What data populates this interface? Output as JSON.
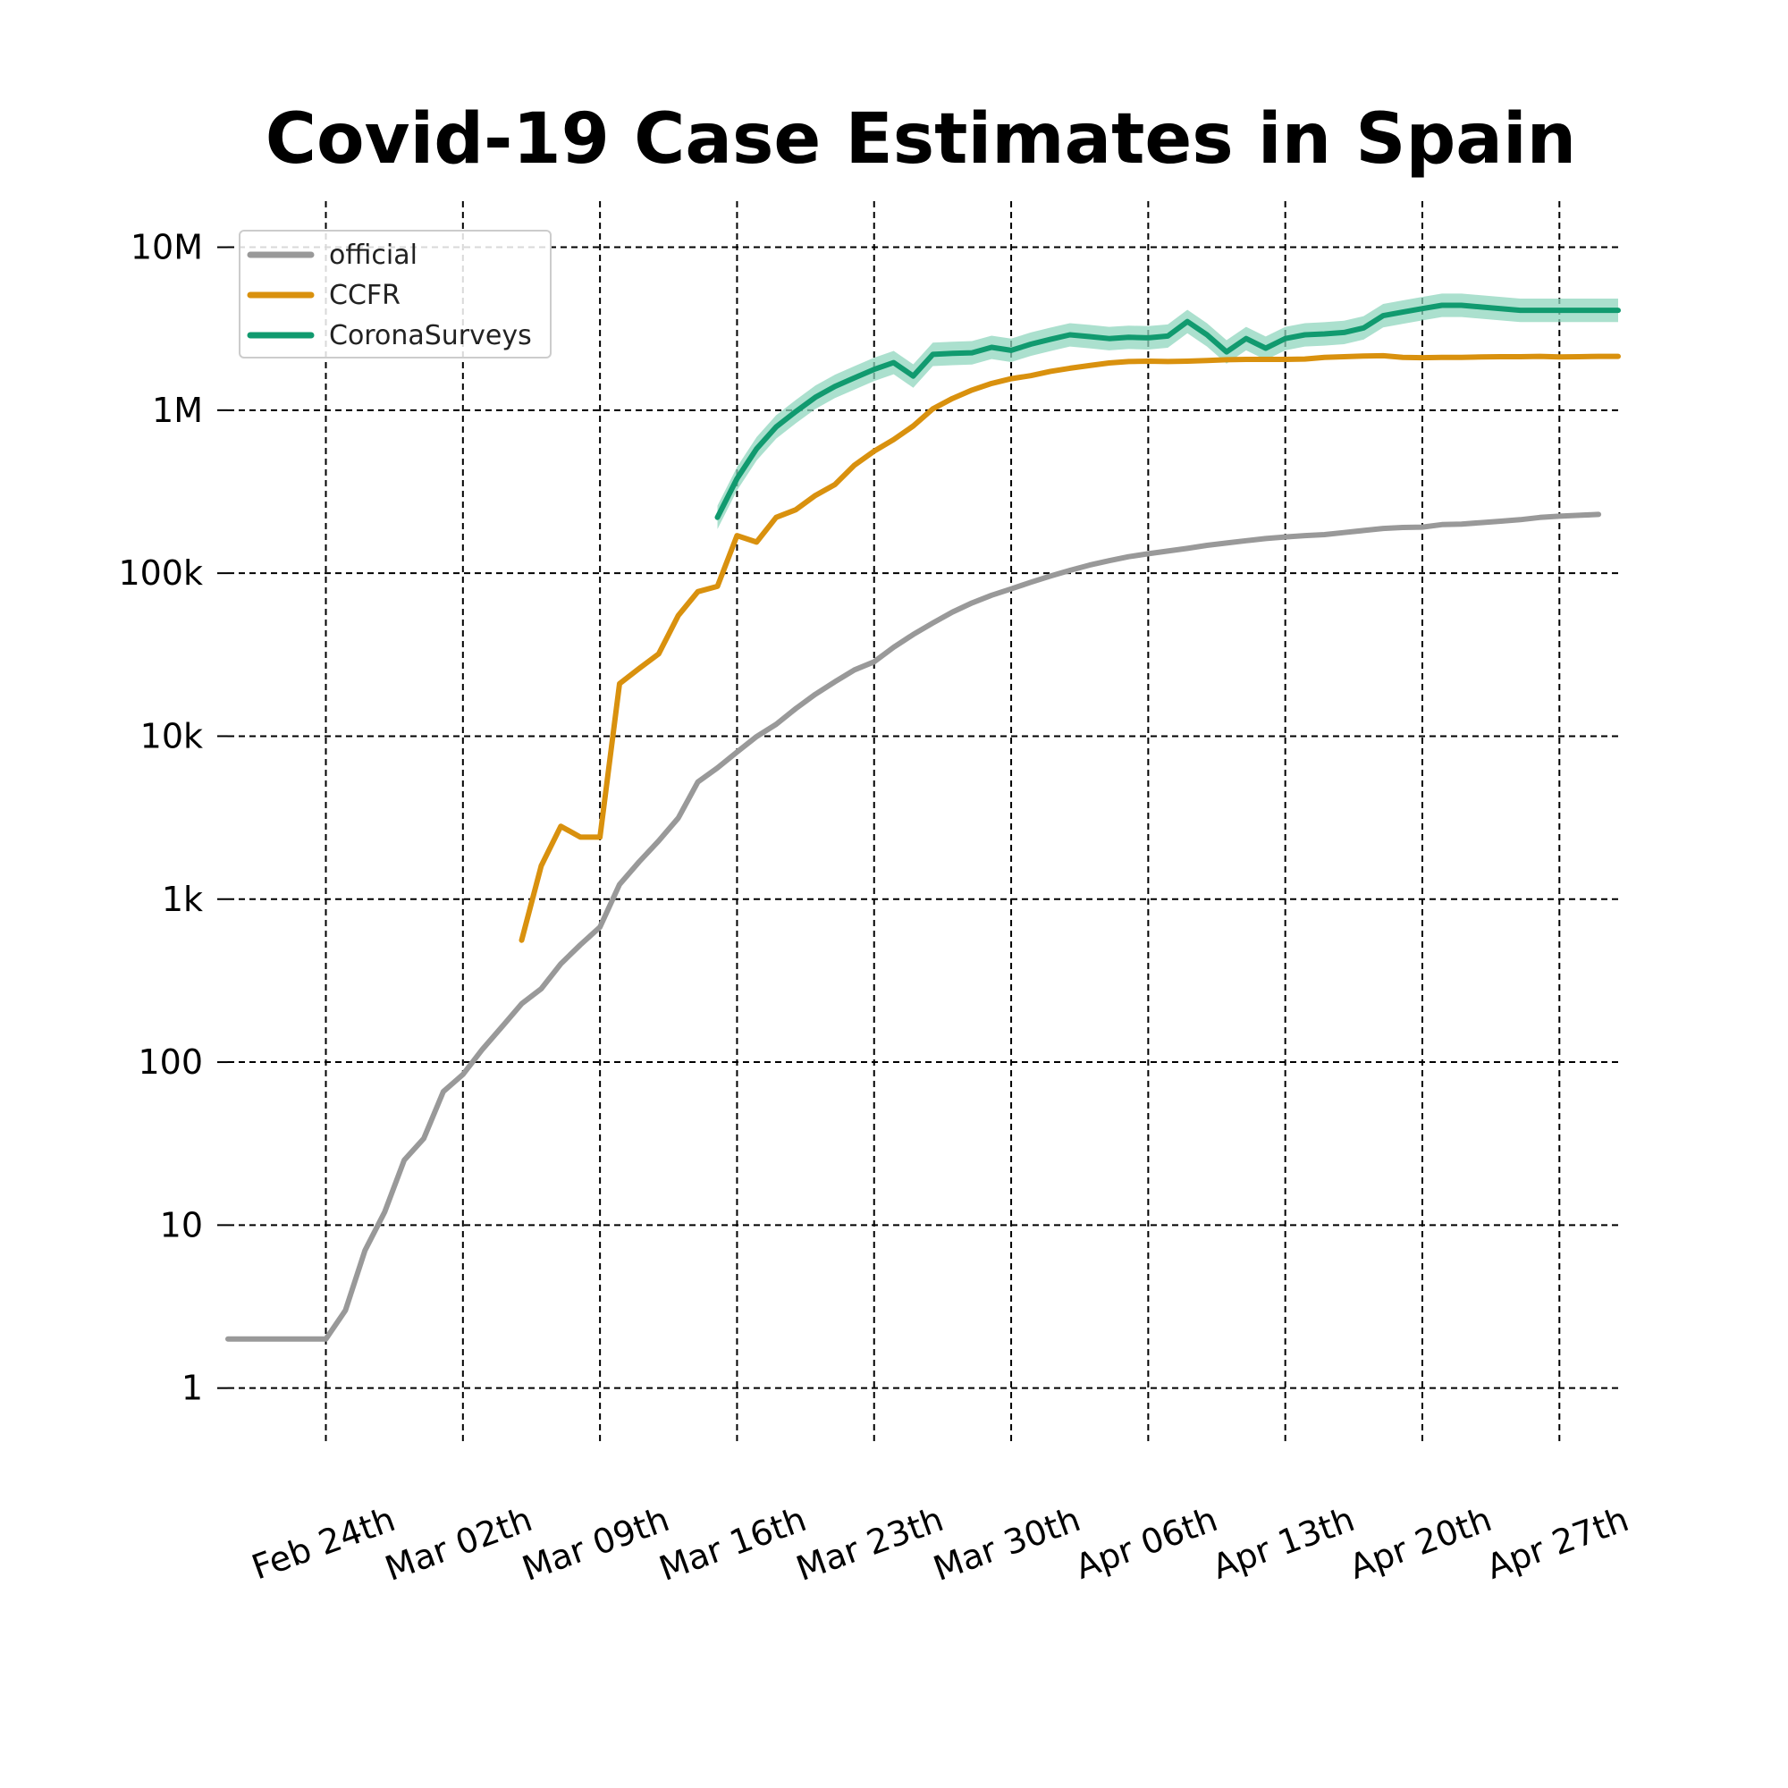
{
  "chart_data": {
    "type": "line",
    "title": "Covid-19 Case Estimates in Spain",
    "xlabel": "",
    "ylabel": "",
    "yscale": "log",
    "ylim": [
      0.55,
      18000000
    ],
    "x_start_date": "2020-02-19",
    "xlim_days": [
      0,
      71
    ],
    "x_ticks": [
      {
        "day": 5,
        "label": "Feb 24th"
      },
      {
        "day": 12,
        "label": "Mar 02th"
      },
      {
        "day": 19,
        "label": "Mar 09th"
      },
      {
        "day": 26,
        "label": "Mar 16th"
      },
      {
        "day": 33,
        "label": "Mar 23th"
      },
      {
        "day": 40,
        "label": "Mar 30th"
      },
      {
        "day": 47,
        "label": "Apr 06th"
      },
      {
        "day": 54,
        "label": "Apr 13th"
      },
      {
        "day": 61,
        "label": "Apr 20th"
      },
      {
        "day": 68,
        "label": "Apr 27th"
      }
    ],
    "y_ticks": [
      {
        "value": 1,
        "label": "1"
      },
      {
        "value": 10,
        "label": "10"
      },
      {
        "value": 100,
        "label": "100"
      },
      {
        "value": 1000,
        "label": "1k"
      },
      {
        "value": 10000,
        "label": "10k"
      },
      {
        "value": 100000,
        "label": "100k"
      },
      {
        "value": 1000000,
        "label": "1M"
      },
      {
        "value": 10000000,
        "label": "10M"
      }
    ],
    "grid": true,
    "legend_position": "top-left",
    "series": [
      {
        "name": "official",
        "color": "#999999",
        "points": [
          [
            0,
            2
          ],
          [
            1,
            2
          ],
          [
            2,
            2
          ],
          [
            3,
            2
          ],
          [
            4,
            2
          ],
          [
            5,
            2
          ],
          [
            6,
            3
          ],
          [
            7,
            7
          ],
          [
            8,
            12
          ],
          [
            9,
            25
          ],
          [
            10,
            34
          ],
          [
            11,
            66
          ],
          [
            12,
            84
          ],
          [
            13,
            120
          ],
          [
            14,
            165
          ],
          [
            15,
            228
          ],
          [
            16,
            282
          ],
          [
            17,
            401
          ],
          [
            18,
            525
          ],
          [
            19,
            674
          ],
          [
            20,
            1231
          ],
          [
            21,
            1695
          ],
          [
            22,
            2277
          ],
          [
            23,
            3146
          ],
          [
            24,
            5232
          ],
          [
            25,
            6391
          ],
          [
            26,
            7988
          ],
          [
            27,
            9942
          ],
          [
            28,
            11826
          ],
          [
            29,
            14769
          ],
          [
            30,
            18077
          ],
          [
            31,
            21571
          ],
          [
            32,
            25496
          ],
          [
            33,
            28572
          ],
          [
            34,
            35136
          ],
          [
            35,
            42058
          ],
          [
            36,
            49515
          ],
          [
            37,
            57786
          ],
          [
            38,
            65719
          ],
          [
            39,
            73235
          ],
          [
            40,
            80110
          ],
          [
            41,
            87956
          ],
          [
            42,
            95923
          ],
          [
            43,
            104118
          ],
          [
            44,
            112065
          ],
          [
            45,
            119199
          ],
          [
            46,
            126168
          ],
          [
            47,
            131646
          ],
          [
            48,
            136675
          ],
          [
            49,
            141942
          ],
          [
            50,
            148220
          ],
          [
            51,
            153222
          ],
          [
            52,
            158273
          ],
          [
            53,
            163027
          ],
          [
            54,
            166831
          ],
          [
            55,
            170099
          ],
          [
            56,
            172541
          ],
          [
            57,
            177644
          ],
          [
            58,
            182816
          ],
          [
            59,
            188068
          ],
          [
            60,
            190839
          ],
          [
            61,
            191726
          ],
          [
            62,
            198674
          ],
          [
            63,
            200210
          ],
          [
            64,
            204178
          ],
          [
            65,
            208389
          ],
          [
            66,
            213024
          ],
          [
            67,
            219764
          ],
          [
            68,
            223759
          ],
          [
            69,
            226629
          ],
          [
            70,
            229422
          ]
        ]
      },
      {
        "name": "CCFR",
        "color": "#d9910e",
        "points": [
          [
            15,
            560
          ],
          [
            16,
            1600
          ],
          [
            17,
            2800
          ],
          [
            18,
            2400
          ],
          [
            19,
            2400
          ],
          [
            20,
            21000
          ],
          [
            21,
            26000
          ],
          [
            22,
            32000
          ],
          [
            23,
            55000
          ],
          [
            24,
            77000
          ],
          [
            25,
            83000
          ],
          [
            26,
            170000
          ],
          [
            27,
            155000
          ],
          [
            28,
            220000
          ],
          [
            29,
            245000
          ],
          [
            30,
            300000
          ],
          [
            31,
            350000
          ],
          [
            32,
            460000
          ],
          [
            33,
            560000
          ],
          [
            34,
            660000
          ],
          [
            35,
            800000
          ],
          [
            36,
            1020000
          ],
          [
            37,
            1180000
          ],
          [
            38,
            1330000
          ],
          [
            39,
            1460000
          ],
          [
            40,
            1560000
          ],
          [
            41,
            1630000
          ],
          [
            42,
            1730000
          ],
          [
            43,
            1810000
          ],
          [
            44,
            1880000
          ],
          [
            45,
            1950000
          ],
          [
            46,
            1990000
          ],
          [
            47,
            2000000
          ],
          [
            48,
            1990000
          ],
          [
            49,
            2000000
          ],
          [
            50,
            2020000
          ],
          [
            51,
            2040000
          ],
          [
            52,
            2050000
          ],
          [
            53,
            2050000
          ],
          [
            54,
            2050000
          ],
          [
            55,
            2060000
          ],
          [
            56,
            2110000
          ],
          [
            57,
            2130000
          ],
          [
            58,
            2150000
          ],
          [
            59,
            2160000
          ],
          [
            60,
            2110000
          ],
          [
            61,
            2100000
          ],
          [
            62,
            2110000
          ],
          [
            63,
            2110000
          ],
          [
            64,
            2120000
          ],
          [
            65,
            2130000
          ],
          [
            66,
            2130000
          ],
          [
            67,
            2140000
          ],
          [
            68,
            2120000
          ],
          [
            69,
            2130000
          ],
          [
            70,
            2140000
          ],
          [
            71,
            2140000
          ]
        ]
      },
      {
        "name": "CoronaSurveys",
        "color": "#119a6f",
        "band_color": "#8fd6bd",
        "points": [
          [
            25,
            220000
          ],
          [
            26,
            380000
          ],
          [
            27,
            580000
          ],
          [
            28,
            790000
          ],
          [
            29,
            980000
          ],
          [
            30,
            1200000
          ],
          [
            31,
            1400000
          ],
          [
            32,
            1580000
          ],
          [
            33,
            1780000
          ],
          [
            34,
            1960000
          ],
          [
            35,
            1620000
          ],
          [
            36,
            2200000
          ],
          [
            37,
            2230000
          ],
          [
            38,
            2250000
          ],
          [
            39,
            2430000
          ],
          [
            40,
            2330000
          ],
          [
            41,
            2540000
          ],
          [
            42,
            2720000
          ],
          [
            43,
            2900000
          ],
          [
            44,
            2830000
          ],
          [
            45,
            2750000
          ],
          [
            46,
            2800000
          ],
          [
            47,
            2780000
          ],
          [
            48,
            2850000
          ],
          [
            49,
            3500000
          ],
          [
            50,
            2900000
          ],
          [
            51,
            2280000
          ],
          [
            52,
            2750000
          ],
          [
            53,
            2400000
          ],
          [
            54,
            2750000
          ],
          [
            55,
            2900000
          ],
          [
            56,
            2940000
          ],
          [
            57,
            3000000
          ],
          [
            58,
            3200000
          ],
          [
            59,
            3800000
          ],
          [
            60,
            4000000
          ],
          [
            61,
            4200000
          ],
          [
            62,
            4400000
          ],
          [
            63,
            4400000
          ],
          [
            64,
            4300000
          ],
          [
            65,
            4200000
          ],
          [
            66,
            4100000
          ],
          [
            67,
            4100000
          ],
          [
            68,
            4100000
          ],
          [
            69,
            4100000
          ],
          [
            70,
            4100000
          ],
          [
            71,
            4100000
          ]
        ]
      }
    ]
  }
}
